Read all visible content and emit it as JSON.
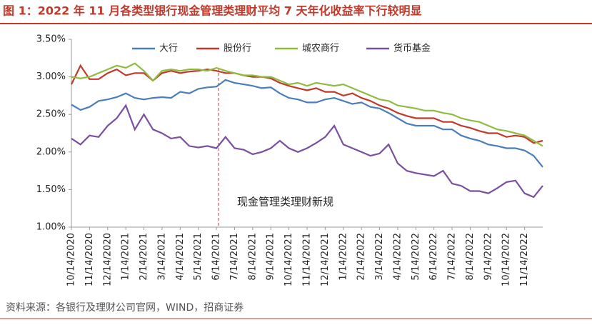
{
  "chart_data": {
    "type": "line",
    "title": "图 1：2022 年 11 月各类型银行现金管理类理财平均 7 天年化收益率下行较明显",
    "source": "资料来源：各银行及理财公司官网，WIND，招商证券",
    "annotation": "现金管理类理财新规",
    "legend": "top",
    "grid": false,
    "categories": [
      "10/14/2020",
      null,
      "11/14/2020",
      null,
      "12/14/2020",
      null,
      "1/14/2021",
      null,
      "2/14/2021",
      null,
      "3/14/2021",
      null,
      "4/14/2021",
      null,
      "5/14/2021",
      null,
      "6/14/2021",
      null,
      "7/14/2021",
      null,
      "8/14/2021",
      null,
      "9/14/2021",
      null,
      "10/14/2021",
      null,
      "11/14/2021",
      null,
      "12/14/2021",
      null,
      "1/14/2022",
      null,
      "2/14/2022",
      null,
      "3/14/2022",
      null,
      "4/14/2022",
      null,
      "5/14/2022",
      null,
      "6/14/2022",
      null,
      "7/14/2022",
      null,
      "8/14/2022",
      null,
      "9/14/2022",
      null,
      "10/14/2022",
      null,
      "11/14/2022",
      null,
      null
    ],
    "ylim": [
      1.0,
      3.5
    ],
    "yticks": [
      {
        "value": 1.0,
        "label": "1.00%"
      },
      {
        "value": 1.5,
        "label": "1.50%"
      },
      {
        "value": 2.0,
        "label": "2.00%"
      },
      {
        "value": 2.5,
        "label": "2.50%"
      },
      {
        "value": 3.0,
        "label": "3.00%"
      },
      {
        "value": 3.5,
        "label": "3.50%"
      }
    ],
    "series": [
      {
        "name": "大行",
        "color": "#4a7ebb",
        "values": [
          2.63,
          2.56,
          2.6,
          2.68,
          2.7,
          2.73,
          2.78,
          2.72,
          2.7,
          2.72,
          2.73,
          2.72,
          2.8,
          2.78,
          2.84,
          2.86,
          2.87,
          2.96,
          2.92,
          2.9,
          2.88,
          2.85,
          2.86,
          2.78,
          2.72,
          2.7,
          2.66,
          2.66,
          2.7,
          2.72,
          2.68,
          2.64,
          2.66,
          2.6,
          2.58,
          2.52,
          2.45,
          2.38,
          2.35,
          2.35,
          2.35,
          2.3,
          2.3,
          2.22,
          2.18,
          2.15,
          2.1,
          2.08,
          2.05,
          2.05,
          2.02,
          1.95,
          1.8
        ]
      },
      {
        "name": "股份行",
        "color": "#c0392b",
        "values": [
          2.9,
          3.15,
          2.97,
          2.97,
          3.05,
          3.1,
          3.02,
          3.05,
          3.05,
          2.95,
          3.05,
          3.08,
          3.05,
          3.07,
          3.08,
          3.1,
          3.08,
          3.05,
          3.05,
          3.02,
          3.0,
          3.0,
          2.98,
          2.92,
          2.88,
          2.85,
          2.82,
          2.85,
          2.8,
          2.8,
          2.75,
          2.78,
          2.72,
          2.68,
          2.62,
          2.58,
          2.52,
          2.48,
          2.45,
          2.45,
          2.45,
          2.4,
          2.4,
          2.35,
          2.32,
          2.28,
          2.25,
          2.25,
          2.2,
          2.22,
          2.2,
          2.12,
          2.15
        ]
      },
      {
        "name": "城农商行",
        "color": "#8fbc3f",
        "values": [
          3.0,
          2.98,
          3.0,
          3.05,
          3.1,
          3.15,
          3.12,
          3.18,
          3.08,
          2.95,
          3.08,
          3.1,
          3.08,
          3.1,
          3.1,
          3.08,
          3.12,
          3.08,
          3.05,
          3.02,
          3.02,
          3.0,
          3.0,
          2.95,
          2.9,
          2.92,
          2.88,
          2.92,
          2.9,
          2.88,
          2.9,
          2.85,
          2.8,
          2.75,
          2.7,
          2.68,
          2.62,
          2.6,
          2.58,
          2.55,
          2.55,
          2.52,
          2.5,
          2.45,
          2.42,
          2.4,
          2.35,
          2.3,
          2.28,
          2.25,
          2.22,
          2.15,
          2.08
        ]
      },
      {
        "name": "货币基金",
        "color": "#7b4fa0",
        "values": [
          2.18,
          2.1,
          2.22,
          2.2,
          2.35,
          2.45,
          2.62,
          2.3,
          2.5,
          2.3,
          2.25,
          2.18,
          2.2,
          2.08,
          2.06,
          2.08,
          2.05,
          2.2,
          2.05,
          2.03,
          1.97,
          2.0,
          2.05,
          2.15,
          2.05,
          2.0,
          2.05,
          2.12,
          2.2,
          2.35,
          2.1,
          2.05,
          2.0,
          1.95,
          1.98,
          2.1,
          1.85,
          1.75,
          1.72,
          1.7,
          1.68,
          1.75,
          1.58,
          1.55,
          1.48,
          1.48,
          1.45,
          1.52,
          1.6,
          1.62,
          1.45,
          1.4,
          1.55
        ]
      }
    ]
  }
}
